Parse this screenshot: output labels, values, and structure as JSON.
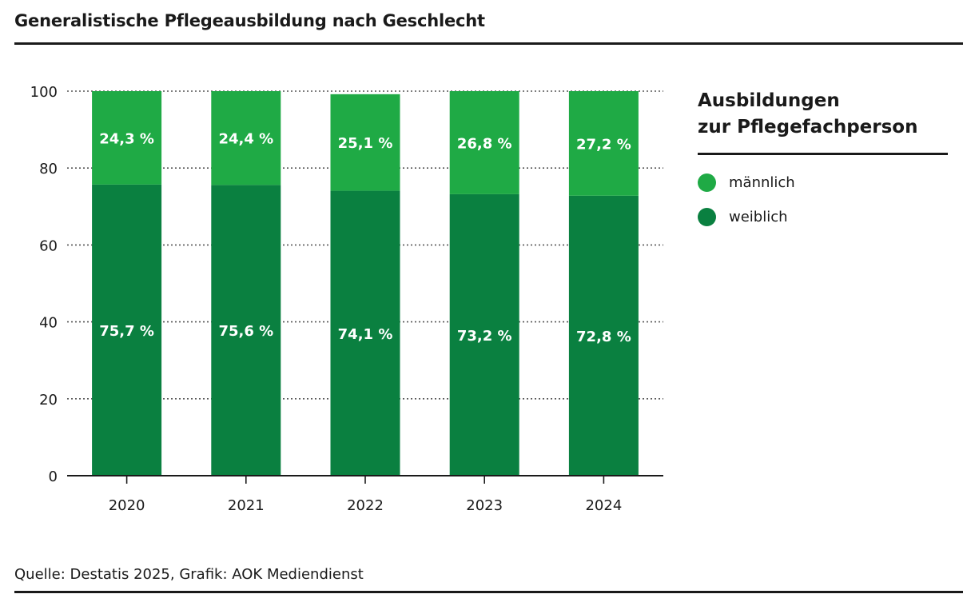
{
  "title": "Generalistische Pflegeausbildung nach Geschlecht",
  "source": "Quelle: Destatis 2025, Grafik: AOK Mediendienst",
  "legend": {
    "title_line1": "Ausbildungen",
    "title_line2": "zur Pflegefachperson",
    "items": [
      {
        "label": "männlich",
        "color": "#1faa45"
      },
      {
        "label": "weiblich",
        "color": "#0a8040"
      }
    ]
  },
  "chart_data": {
    "type": "bar",
    "stacked": true,
    "categories": [
      "2020",
      "2021",
      "2022",
      "2023",
      "2024"
    ],
    "series": [
      {
        "name": "weiblich",
        "color": "#0a8040",
        "values": [
          75.7,
          75.6,
          74.1,
          73.2,
          72.8
        ],
        "labels": [
          "75,7 %",
          "75,6 %",
          "74,1 %",
          "73,2 %",
          "72,8 %"
        ]
      },
      {
        "name": "männlich",
        "color": "#1faa45",
        "values": [
          24.3,
          24.4,
          25.1,
          26.8,
          27.2
        ],
        "labels": [
          "24,3 %",
          "24,4 %",
          "25,1 %",
          "26,8 %",
          "27,2 %"
        ]
      }
    ],
    "ylim": [
      0,
      100
    ],
    "yticks": [
      0,
      20,
      40,
      60,
      80,
      100
    ],
    "grid": true,
    "legend_position": "right"
  }
}
